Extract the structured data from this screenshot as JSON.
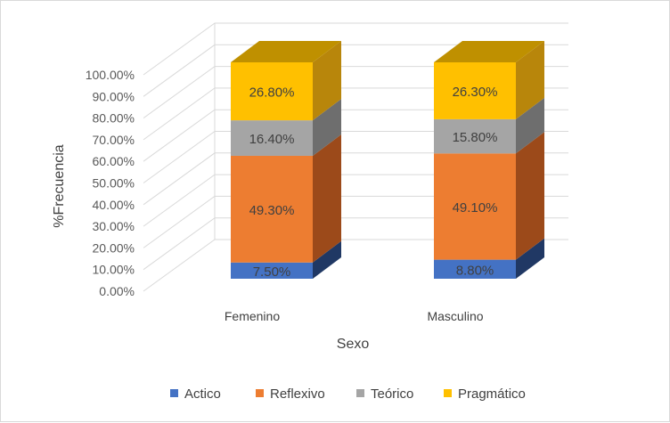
{
  "chart_data": {
    "type": "bar",
    "stacked": true,
    "three_d": true,
    "categories": [
      "Femenino",
      "Masculino"
    ],
    "series": [
      {
        "name": "Actico",
        "values": [
          7.5,
          8.8
        ],
        "labels": [
          "7.50%",
          "8.80%"
        ],
        "color": "#4472C4",
        "shade": "#2F5597",
        "side": "#203864"
      },
      {
        "name": "Reflexivo",
        "values": [
          49.3,
          49.1
        ],
        "labels": [
          "49.30%",
          "49.10%"
        ],
        "color": "#ED7D31",
        "shade": "#C55A11",
        "side": "#9C4A1A"
      },
      {
        "name": "Teórico",
        "values": [
          16.4,
          15.8
        ],
        "labels": [
          "16.40%",
          "15.80%"
        ],
        "color": "#A5A5A5",
        "shade": "#7F7F7F",
        "side": "#6E6E6E"
      },
      {
        "name": "Pragmático",
        "values": [
          26.8,
          26.3
        ],
        "labels": [
          "26.80%",
          "26.30%"
        ],
        "color": "#FFC000",
        "shade": "#BF9000",
        "side": "#B8860B"
      }
    ],
    "yticks": [
      "0.00%",
      "10.00%",
      "20.00%",
      "30.00%",
      "40.00%",
      "50.00%",
      "60.00%",
      "70.00%",
      "80.00%",
      "90.00%",
      "100.00%"
    ],
    "ylim": [
      0,
      100
    ],
    "xlabel": "Sexo",
    "ylabel": "%Frecuencia",
    "grid": true,
    "legend_position": "bottom"
  }
}
